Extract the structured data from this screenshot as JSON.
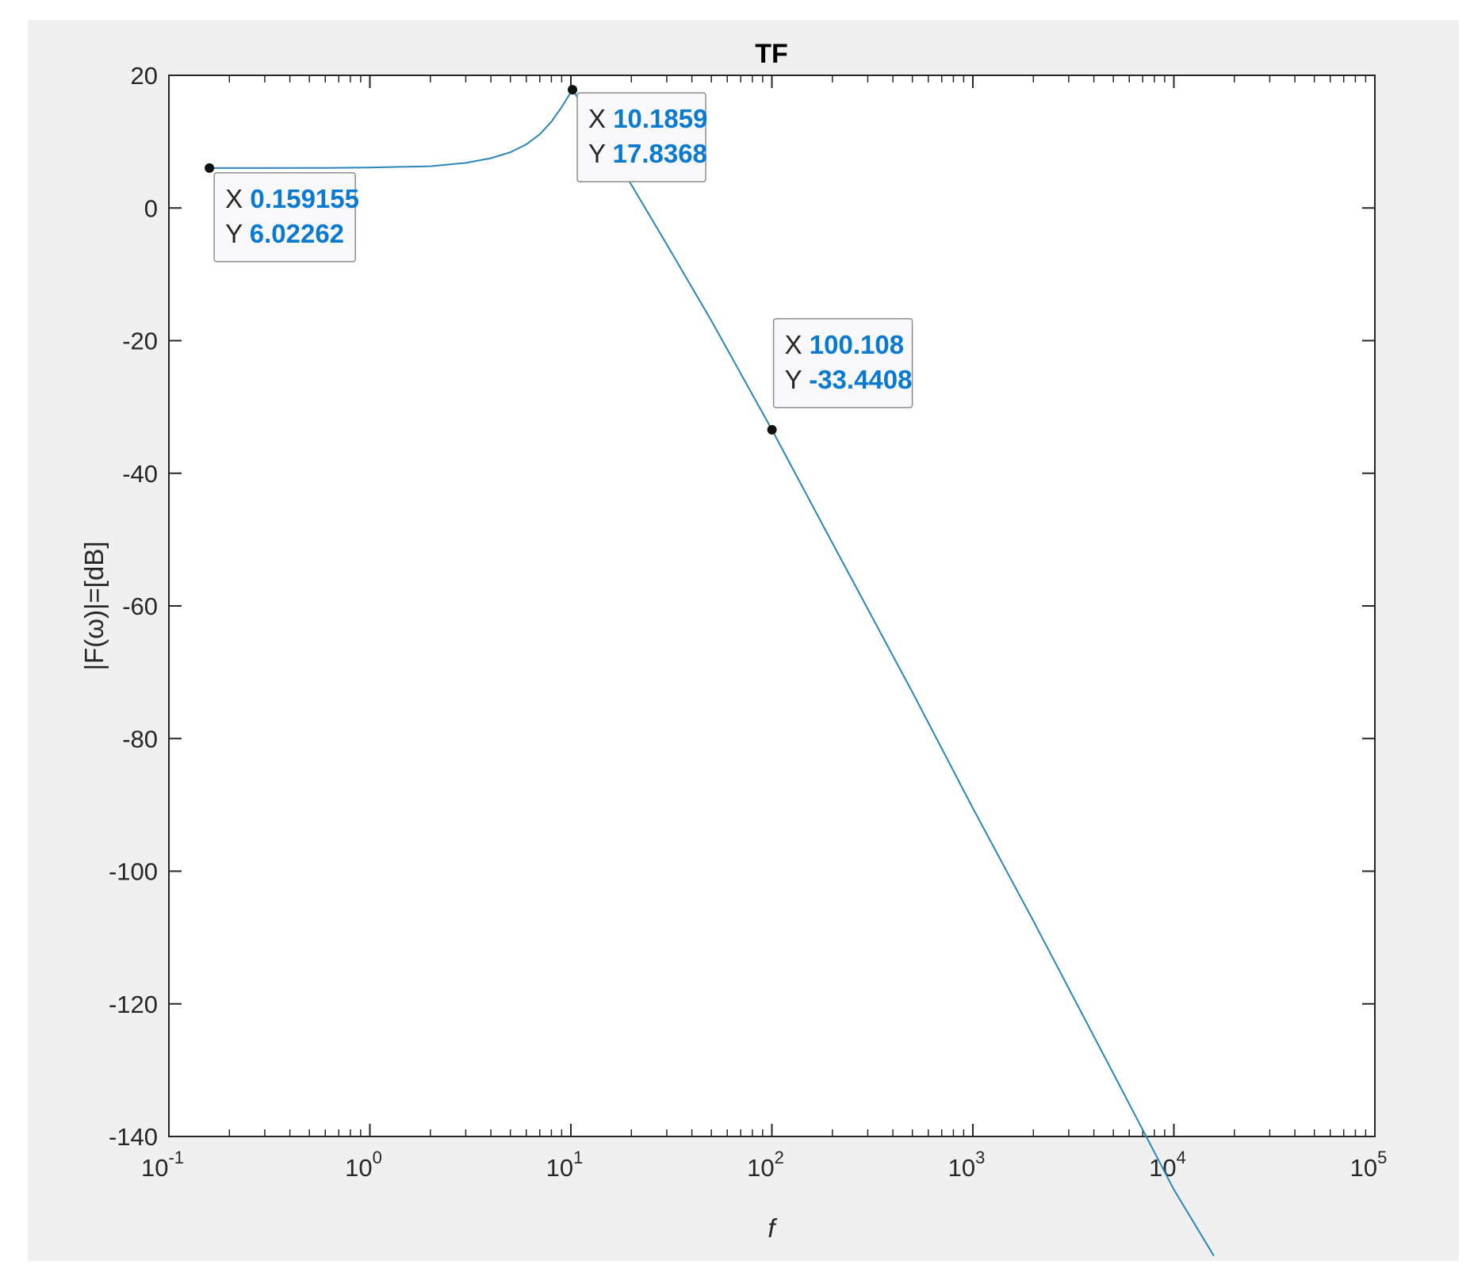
{
  "chart_data": {
    "type": "line",
    "title": "TF",
    "xlabel": "f",
    "ylabel": "|F(ω)|=[dB]",
    "xscale": "log",
    "xlim": [
      0.1,
      100000
    ],
    "ylim": [
      -140,
      20
    ],
    "xticks": [
      {
        "base": "10",
        "exp": "-1",
        "value": 0.1
      },
      {
        "base": "10",
        "exp": "0",
        "value": 1
      },
      {
        "base": "10",
        "exp": "1",
        "value": 10
      },
      {
        "base": "10",
        "exp": "2",
        "value": 100
      },
      {
        "base": "10",
        "exp": "3",
        "value": 1000
      },
      {
        "base": "10",
        "exp": "4",
        "value": 10000
      },
      {
        "base": "10",
        "exp": "5",
        "value": 100000
      }
    ],
    "yticks": [
      {
        "label": "20",
        "value": 20
      },
      {
        "label": "0",
        "value": 0
      },
      {
        "label": "-20",
        "value": -20
      },
      {
        "label": "-40",
        "value": -40
      },
      {
        "label": "-60",
        "value": -60
      },
      {
        "label": "-80",
        "value": -80
      },
      {
        "label": "-100",
        "value": -100
      },
      {
        "label": "-120",
        "value": -120
      },
      {
        "label": "-140",
        "value": -140
      }
    ],
    "grid": false,
    "line_color": "#2a86b8",
    "series": [
      {
        "x": [
          0.159155,
          0.3,
          0.6,
          1,
          2,
          3,
          4,
          5,
          6,
          7,
          8,
          9,
          10.1859,
          12,
          15,
          20,
          30,
          50,
          100.108,
          200,
          500,
          1000,
          2000,
          5000,
          10000,
          15800
        ],
        "values": [
          6.02262,
          6.02,
          6.04,
          6.1,
          6.3,
          6.8,
          7.5,
          8.4,
          9.6,
          11.1,
          13.0,
          15.2,
          17.8368,
          14.5,
          9.8,
          3.5,
          -5.5,
          -17.0,
          -33.4408,
          -50.5,
          -73.0,
          -90.5,
          -107.5,
          -130.5,
          -148.0,
          -158.0
        ]
      }
    ],
    "datatips": [
      {
        "x_key": "X",
        "x_value": "0.159155",
        "y_key": "Y",
        "y_value": "6.02262",
        "x": 0.159155,
        "y": 6.02262
      },
      {
        "x_key": "X",
        "x_value": "10.1859",
        "y_key": "Y",
        "y_value": "17.8368",
        "x": 10.1859,
        "y": 17.8368
      },
      {
        "x_key": "X",
        "x_value": "100.108",
        "y_key": "Y",
        "y_value": "-33.4408",
        "x": 100.108,
        "y": -33.4408
      }
    ],
    "value_color": "#0a7ad1"
  }
}
